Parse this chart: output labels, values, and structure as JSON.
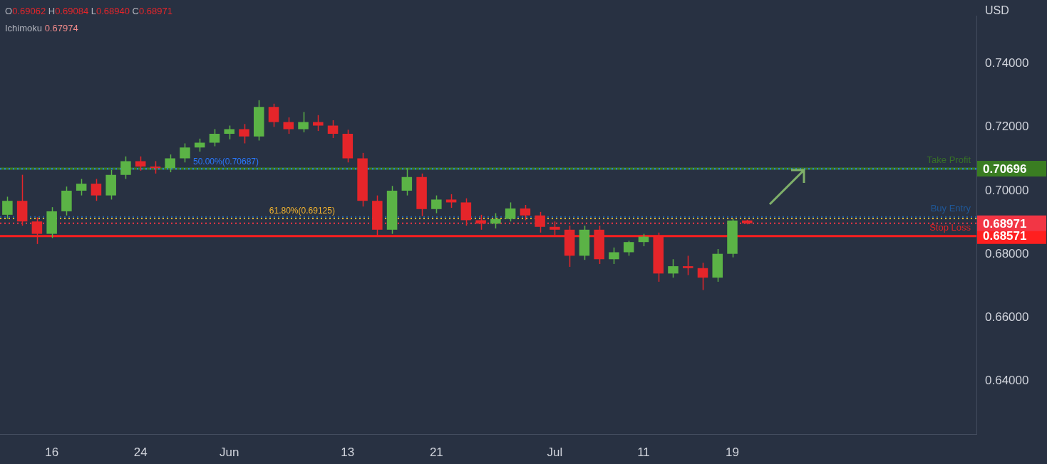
{
  "chart_data": {
    "type": "candlestick",
    "ylabel": "USD",
    "categories": [
      null,
      null,
      null,
      "16",
      null,
      null,
      null,
      null,
      null,
      "24",
      null,
      null,
      null,
      null,
      null,
      "Jun",
      null,
      null,
      null,
      null,
      null,
      null,
      null,
      "13",
      null,
      null,
      null,
      null,
      null,
      "21",
      null,
      null,
      null,
      null,
      null,
      null,
      null,
      "Jul",
      null,
      null,
      null,
      null,
      null,
      "11",
      null,
      null,
      null,
      null,
      null,
      "19",
      null,
      null,
      null,
      null,
      null,
      null,
      null,
      null,
      null,
      null,
      null,
      null,
      null,
      null,
      null,
      null
    ],
    "ohlc": [
      [
        0.6924,
        0.6981,
        0.6911,
        0.6968
      ],
      [
        0.6968,
        0.705,
        0.689,
        0.6903
      ],
      [
        0.6903,
        0.6916,
        0.6832,
        0.6864
      ],
      [
        0.6864,
        0.6948,
        0.6851,
        0.6935
      ],
      [
        0.6935,
        0.7013,
        0.6922,
        0.7
      ],
      [
        0.7,
        0.7037,
        0.6985,
        0.7022
      ],
      [
        0.7022,
        0.7037,
        0.6968,
        0.6985
      ],
      [
        0.6985,
        0.7065,
        0.6972,
        0.705
      ],
      [
        0.705,
        0.7108,
        0.7037,
        0.7093
      ],
      [
        0.7093,
        0.7108,
        0.7063,
        0.7076
      ],
      [
        0.7076,
        0.7093,
        0.7054,
        0.7071
      ],
      [
        0.7071,
        0.7114,
        0.7058,
        0.7102
      ],
      [
        0.7102,
        0.7149,
        0.7089,
        0.7136
      ],
      [
        0.7136,
        0.7164,
        0.7123,
        0.7151
      ],
      [
        0.7151,
        0.7194,
        0.714,
        0.7179
      ],
      [
        0.7179,
        0.7205,
        0.7162,
        0.7194
      ],
      [
        0.7194,
        0.721,
        0.7149,
        0.7171
      ],
      [
        0.7171,
        0.7285,
        0.7158,
        0.7264
      ],
      [
        0.7264,
        0.7274,
        0.7201,
        0.7216
      ],
      [
        0.7216,
        0.7231,
        0.7179,
        0.7194
      ],
      [
        0.7194,
        0.7248,
        0.7184,
        0.7216
      ],
      [
        0.7216,
        0.7238,
        0.7188,
        0.7205
      ],
      [
        0.7205,
        0.7222,
        0.7166,
        0.7179
      ],
      [
        0.7179,
        0.7192,
        0.7089,
        0.7102
      ],
      [
        0.7102,
        0.7119,
        0.695,
        0.6968
      ],
      [
        0.6968,
        0.6985,
        0.6855,
        0.6877
      ],
      [
        0.6877,
        0.7015,
        0.6864,
        0.7
      ],
      [
        0.7,
        0.7071,
        0.6985,
        0.7043
      ],
      [
        0.7043,
        0.7054,
        0.692,
        0.6942
      ],
      [
        0.6942,
        0.6985,
        0.6929,
        0.6972
      ],
      [
        0.6972,
        0.6989,
        0.6946,
        0.6963
      ],
      [
        0.6963,
        0.6976,
        0.689,
        0.6907
      ],
      [
        0.6907,
        0.6924,
        0.6877,
        0.6896
      ],
      [
        0.6896,
        0.6929,
        0.6881,
        0.6911
      ],
      [
        0.6911,
        0.6963,
        0.6903,
        0.6944
      ],
      [
        0.6944,
        0.6955,
        0.6907,
        0.6922
      ],
      [
        0.6922,
        0.6933,
        0.6868,
        0.6886
      ],
      [
        0.6886,
        0.6903,
        0.686,
        0.6877
      ],
      [
        0.6877,
        0.689,
        0.676,
        0.6795
      ],
      [
        0.6795,
        0.689,
        0.6782,
        0.6877
      ],
      [
        0.6877,
        0.689,
        0.6769,
        0.6784
      ],
      [
        0.6784,
        0.6821,
        0.6769,
        0.6806
      ],
      [
        0.6806,
        0.6842,
        0.6795,
        0.6838
      ],
      [
        0.6838,
        0.6864,
        0.6825,
        0.6855
      ],
      [
        0.6855,
        0.6868,
        0.6713,
        0.6739
      ],
      [
        0.6739,
        0.6784,
        0.6726,
        0.6762
      ],
      [
        0.6762,
        0.6795,
        0.6734,
        0.6756
      ],
      [
        0.6756,
        0.6773,
        0.6687,
        0.6726
      ],
      [
        0.6726,
        0.6816,
        0.6713,
        0.6801
      ],
      [
        0.6801,
        0.6911,
        0.679,
        0.6906
      ],
      [
        0.69062,
        0.69084,
        0.6894,
        0.68971
      ],
      null,
      null,
      null,
      null,
      null,
      null,
      null,
      null,
      null,
      null,
      null,
      null,
      null,
      null,
      null
    ],
    "ylim": [
      0.6233,
      0.7551
    ],
    "yticks": [
      {
        "value": 0.64,
        "label": "0.64000"
      },
      {
        "value": 0.66,
        "label": "0.66000"
      },
      {
        "value": 0.68,
        "label": "0.68000"
      },
      {
        "value": 0.7,
        "label": "0.70000"
      },
      {
        "value": 0.72,
        "label": "0.72000"
      },
      {
        "value": 0.74,
        "label": "0.74000"
      }
    ],
    "ref_lines": [
      {
        "axis": "y",
        "value": 0.70696,
        "label": "Take Profit",
        "color": "#3a7d22",
        "line_style": "solid"
      },
      {
        "axis": "y",
        "value": 0.69173,
        "label": "Buy Entry",
        "color": "#1e5fa8",
        "line_style": "dotted"
      },
      {
        "axis": "y",
        "value": 0.68571,
        "label": "Stop Loss",
        "color": "#ff1f1f",
        "line_style": "solid"
      },
      {
        "axis": "y",
        "value": 0.68971,
        "color": "#f23645",
        "line_style": "dotted"
      },
      {
        "axis": "y",
        "value": 0.70687,
        "color": "#2979ff",
        "line_style": "dotted"
      },
      {
        "axis": "y",
        "value": 0.69125,
        "color": "#f5b52e",
        "line_style": "dotted"
      }
    ],
    "annotations": [
      "O0.69062 H0.69084 L0.68940 C0.68971",
      "Ichimoku 0.67974",
      {
        "text": "50.00%(0.70687)",
        "y": 0.70687
      },
      {
        "text": "61.80%(0.69125)",
        "y": 0.69125
      },
      "0.70696",
      "0.68571",
      "0.68971"
    ],
    "legend": false,
    "grid": false
  }
}
